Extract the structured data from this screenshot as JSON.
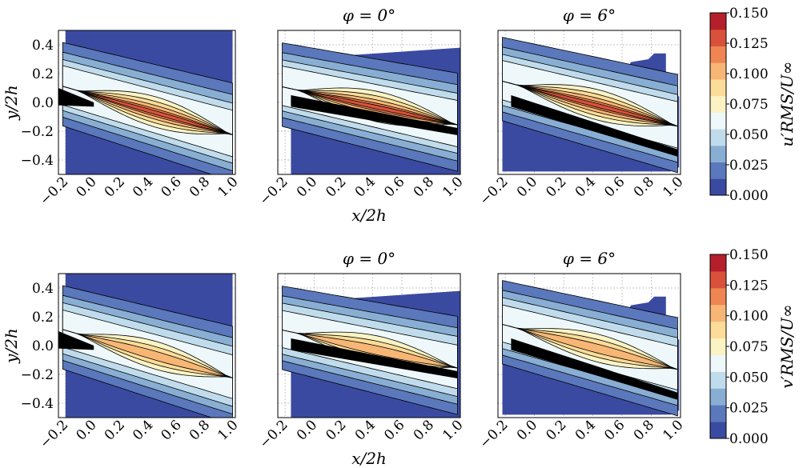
{
  "chart_data": [
    {
      "type": "heatmap",
      "row": "u",
      "panels": [
        {
          "title": "",
          "xlabel": "",
          "ylabel": "y/2h",
          "xlim": [
            -0.25,
            1.0
          ],
          "ylim": [
            -0.5,
            0.5
          ],
          "xticks": [
            "−0.2",
            "0.0",
            "0.2",
            "0.4",
            "0.6",
            "0.8",
            "1.0"
          ],
          "yticks": [
            "0.4",
            "0.2",
            "0.0",
            "−0.2",
            "−0.4"
          ]
        },
        {
          "title": "φ = 0°",
          "xlabel": "x/2h",
          "ylabel": "",
          "xlim": [
            -0.25,
            1.0
          ],
          "ylim": [
            -0.5,
            0.5
          ],
          "xticks": [
            "−0.2",
            "0.0",
            "0.2",
            "0.4",
            "0.6",
            "0.8",
            "1.0"
          ],
          "yticks": []
        },
        {
          "title": "φ = 6°",
          "xlabel": "",
          "ylabel": "",
          "xlim": [
            -0.25,
            1.0
          ],
          "ylim": [
            -0.5,
            0.5
          ],
          "xticks": [
            "−0.2",
            "0.0",
            "0.2",
            "0.4",
            "0.6",
            "0.8",
            "1.0"
          ],
          "yticks": []
        }
      ],
      "colorbar": {
        "label": "u′RMS/U∞",
        "ticks": [
          "0.150",
          "0.125",
          "0.100",
          "0.075",
          "0.050",
          "0.025",
          "0.000"
        ],
        "range": [
          0.0,
          0.15
        ]
      }
    },
    {
      "type": "heatmap",
      "row": "v",
      "panels": [
        {
          "title": "",
          "xlabel": "",
          "ylabel": "y/2h",
          "xlim": [
            -0.25,
            1.0
          ],
          "ylim": [
            -0.5,
            0.5
          ],
          "xticks": [
            "−0.2",
            "0.0",
            "0.2",
            "0.4",
            "0.6",
            "0.8",
            "1.0"
          ],
          "yticks": [
            "0.4",
            "0.2",
            "0.0",
            "−0.2",
            "−0.4"
          ]
        },
        {
          "title": "φ = 0°",
          "xlabel": "x/2h",
          "ylabel": "",
          "xlim": [
            -0.25,
            1.0
          ],
          "ylim": [
            -0.5,
            0.5
          ],
          "xticks": [
            "−0.2",
            "0.0",
            "0.2",
            "0.4",
            "0.6",
            "0.8",
            "1.0"
          ],
          "yticks": []
        },
        {
          "title": "φ = 6°",
          "xlabel": "",
          "ylabel": "",
          "xlim": [
            -0.25,
            1.0
          ],
          "ylim": [
            -0.5,
            0.5
          ],
          "xticks": [
            "−0.2",
            "0.0",
            "0.2",
            "0.4",
            "0.6",
            "0.8",
            "1.0"
          ],
          "yticks": []
        }
      ],
      "colorbar": {
        "label": "v′RMS/U∞",
        "ticks": [
          "0.150",
          "0.125",
          "0.100",
          "0.075",
          "0.050",
          "0.025",
          "0.000"
        ],
        "range": [
          0.0,
          0.15
        ]
      }
    }
  ],
  "colors": [
    "#3b4aa1",
    "#5a78bb",
    "#89aed3",
    "#c0dcec",
    "#eef8fb",
    "#fbf3c4",
    "#fbdc98",
    "#f7b675",
    "#ee8552",
    "#d9513a",
    "#b51f2b"
  ]
}
